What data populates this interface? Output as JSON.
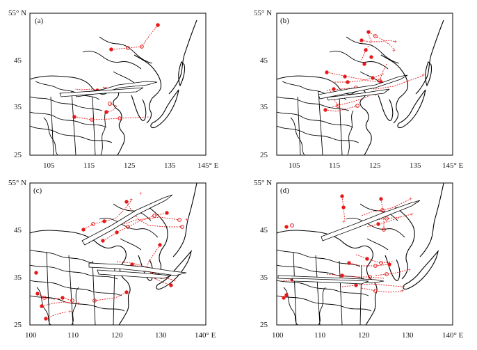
{
  "colors": {
    "track": "#e8191a",
    "map_line": "#000000",
    "background": "#ffffff"
  },
  "panels": [
    {
      "label": "(a)",
      "lat_ticks": [
        "55° N",
        "45",
        "35",
        "25"
      ],
      "lon_ticks": [
        "105",
        "115",
        "125",
        "135",
        "145° E"
      ]
    },
    {
      "label": "(b)",
      "lat_ticks": [
        "55° N",
        "45",
        "35",
        "25"
      ],
      "lon_ticks": [
        "105",
        "115",
        "125",
        "135",
        "145° E"
      ]
    },
    {
      "label": "(c)",
      "lat_ticks": [
        "55° N",
        "45",
        "35",
        "25"
      ],
      "lon_ticks": [
        "100",
        "110",
        "120",
        "130",
        "140° E"
      ]
    },
    {
      "label": "(d)",
      "lat_ticks": [
        "55° N",
        "45",
        "35",
        "25"
      ],
      "lon_ticks": [
        "100",
        "110",
        "120",
        "130",
        "140° E"
      ]
    }
  ]
}
